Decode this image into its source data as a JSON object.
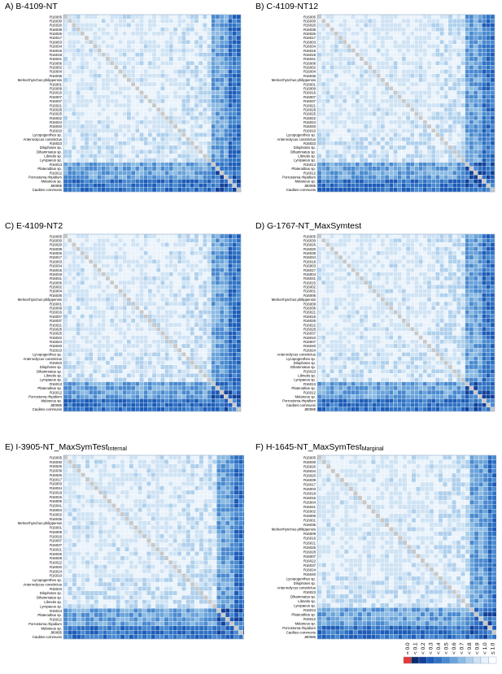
{
  "figure": {
    "colors": {
      "diag": "#c8c8c8",
      "scale": [
        "#e53935",
        "#0d2c6b",
        "#12409a",
        "#1e5cb8",
        "#2f72c4",
        "#4a8ad0",
        "#6aa3da",
        "#8cbbe3",
        "#afd0ec",
        "#cfe3f4",
        "#eaf3fb",
        "#ffffff"
      ]
    },
    "legend": {
      "labels": [
        "= 0.0",
        "< 0.1",
        "< 0.2",
        "< 0.3",
        "< 0.4",
        "< 0.5",
        "< 0.6",
        "< 0.7",
        "< 0.8",
        "< 0.9",
        "< 1.0",
        "≤ 1.0"
      ]
    }
  },
  "panels": [
    {
      "title": "A) B-4109-NT",
      "subtitle": "",
      "rows": [
        "R16005",
        "R16030",
        "R16020",
        "R16039",
        "R16026",
        "R16017",
        "R16003",
        "R16034",
        "R16015",
        "R16018",
        "R16041",
        "R16006",
        "R16002",
        "R16004",
        "R16036",
        "Melnorrhynchus philippensis",
        "R16001",
        "R16009",
        "R16016",
        "R16007",
        "R16037",
        "R16021",
        "R16028",
        "R16025",
        "R16022",
        "R16024",
        "R16040",
        "R16010",
        "Lycopogenthes sp.",
        "Antennolycus constrictus",
        "R16023",
        "Dilophotes sp.",
        "Dihammatus sp.",
        "Libnetis sp.",
        "Lyropaeus sp.",
        "R16013",
        "Plateroditus sp.",
        "R16012",
        "Porrostoma rhipidium",
        "Melaneus sp.",
        "J80085",
        "Caulites communis"
      ]
    },
    {
      "title": "B) C-4109-NT12",
      "subtitle": "",
      "rows": [
        "R16005",
        "R16030",
        "R16020",
        "R16039",
        "R16026",
        "R16017",
        "R16003",
        "R16034",
        "R16015",
        "R16018",
        "R16041",
        "R16006",
        "R16002",
        "R16004",
        "R16036",
        "Melnorrhynchus philippensis",
        "R16001",
        "R16009",
        "R16016",
        "R16007",
        "R16037",
        "R16021",
        "R16028",
        "R16025",
        "R16022",
        "R16024",
        "R16040",
        "R16010",
        "Lycopogenthes sp.",
        "Antennolycus constrictus",
        "R16023",
        "Dilophotes sp.",
        "Dihammatus sp.",
        "Libnetis sp.",
        "Lyropaeus sp.",
        "R16013",
        "Plateroditus sp.",
        "R16012",
        "Porrostoma rhipidium",
        "Melaneus sp.",
        "J80085",
        "Caulites communis"
      ]
    },
    {
      "title": "C) E-4109-NT2",
      "subtitle": "",
      "rows": [
        "R16005",
        "R16030",
        "R16020",
        "R16039",
        "R16026",
        "R16017",
        "R16003",
        "R16034",
        "R16015",
        "R16018",
        "R16041",
        "R16006",
        "R16002",
        "R16004",
        "R16036",
        "Melnorrhynchus philippensis",
        "R16001",
        "R16009",
        "R16016",
        "R16007",
        "R16037",
        "R16021",
        "R16028",
        "R16025",
        "R16022",
        "R16024",
        "R16040",
        "R16010",
        "Lycopogenthes sp.",
        "Antennolycus constrictus",
        "R16023",
        "Dilophotes sp.",
        "Dihammatus sp.",
        "Libnetis sp.",
        "Lyropaeus sp.",
        "R16013",
        "Plateroditus sp.",
        "R16012",
        "Porrostoma rhipidium",
        "Melaneus sp.",
        "J80085",
        "Caulites communis"
      ]
    },
    {
      "title": "D) G-1767-NT_MaxSymtest",
      "subtitle": "",
      "rows": [
        "R16005",
        "R16030",
        "R16026",
        "R16020",
        "R16039",
        "R16034",
        "R16018",
        "R16003",
        "R16017",
        "R16004",
        "R16041",
        "R16015",
        "R16002",
        "R16001",
        "R16006",
        "Melnorrhynchus philippensis",
        "R16009",
        "R16036",
        "R16021",
        "R16016",
        "R16025",
        "R16022",
        "R16028",
        "R16037",
        "R16010",
        "R16007",
        "R16040",
        "R16024",
        "Antennolycus constrictus",
        "Lycopogenthes sp.",
        "Dilophotes sp.",
        "Dihammatus sp.",
        "R16023",
        "Libnetis sp.",
        "Lyropaeus sp.",
        "R16013",
        "Plateroditus sp.",
        "R16012",
        "Melaneus sp.",
        "Porrostoma rhipidium",
        "Caulites communis",
        "J80085"
      ]
    },
    {
      "title": "E) I-3905-NT_MaxSymTest",
      "subtitle": "Internal",
      "rows": [
        "R16005",
        "R16030",
        "R16026",
        "R16039",
        "R16026",
        "R16017",
        "R16003",
        "R16034",
        "R16018",
        "R16015",
        "R16006",
        "R16041",
        "R16004",
        "R16002",
        "R16036",
        "Melnorrhynchus philippensis",
        "R16001",
        "R16009",
        "R16016",
        "R16007",
        "R16037",
        "R16021",
        "R16025",
        "R16028",
        "R16022",
        "R16040",
        "R16024",
        "R16010",
        "Lycopogenthes sp.",
        "Antennolycus constrictus",
        "R16023",
        "Dilophotes sp.",
        "Dihammatus sp.",
        "Libnetis sp.",
        "Lyropaeus sp.",
        "R16013",
        "Plateroditus sp.",
        "R16012",
        "Porrostoma rhipidium",
        "Melaneus sp.",
        "J80085",
        "Caulites communis"
      ]
    },
    {
      "title": "F) H-1645-NT_MaxSymTest",
      "subtitle": "Marginal",
      "rows": [
        "R16005",
        "R16030",
        "R16026",
        "R16034",
        "R16020",
        "R16039",
        "R16017",
        "R16003",
        "R16018",
        "R16015",
        "R16004",
        "R16041",
        "R16002",
        "R16006",
        "R16001",
        "R16036",
        "Melnorrhynchus philippensis",
        "R16009",
        "R16016",
        "R16021",
        "R16025",
        "R16028",
        "R16007",
        "R16022",
        "R16037",
        "R16024",
        "R16040",
        "Lycopogenthes sp.",
        "Dilophotes sp.",
        "Antennolycus constrictus",
        "R16023",
        "Dihammatus sp.",
        "Libnetis sp.",
        "Lyropaeus sp.",
        "R16013",
        "Plateroditus sp.",
        "R16012",
        "Melaneus sp.",
        "Porrostoma rhipidium",
        "Caulites communis",
        "J80085"
      ]
    }
  ],
  "chart_data": [
    {
      "type": "heatmap",
      "title": "A) B-4109-NT",
      "diagonal": "gray",
      "categories_y": "see panels.0.rows",
      "value_scale": [
        "= 0.0",
        "< 0.1",
        "< 0.2",
        "< 0.3",
        "< 0.4",
        "< 0.5",
        "< 0.6",
        "< 0.7",
        "< 0.8",
        "< 0.9",
        "< 1.0",
        "≤ 1.0"
      ]
    },
    {
      "type": "heatmap",
      "title": "B) C-4109-NT12",
      "diagonal": "gray",
      "categories_y": "see panels.1.rows"
    },
    {
      "type": "heatmap",
      "title": "C) E-4109-NT2",
      "diagonal": "gray",
      "categories_y": "see panels.2.rows"
    },
    {
      "type": "heatmap",
      "title": "D) G-1767-NT_MaxSymtest",
      "diagonal": "gray",
      "categories_y": "see panels.3.rows"
    },
    {
      "type": "heatmap",
      "title": "E) I-3905-NT_MaxSymTestInternal",
      "diagonal": "gray",
      "categories_y": "see panels.4.rows"
    },
    {
      "type": "heatmap",
      "title": "F) H-1645-NT_MaxSymTestMarginal",
      "diagonal": "gray",
      "categories_y": "see panels.5.rows"
    }
  ]
}
